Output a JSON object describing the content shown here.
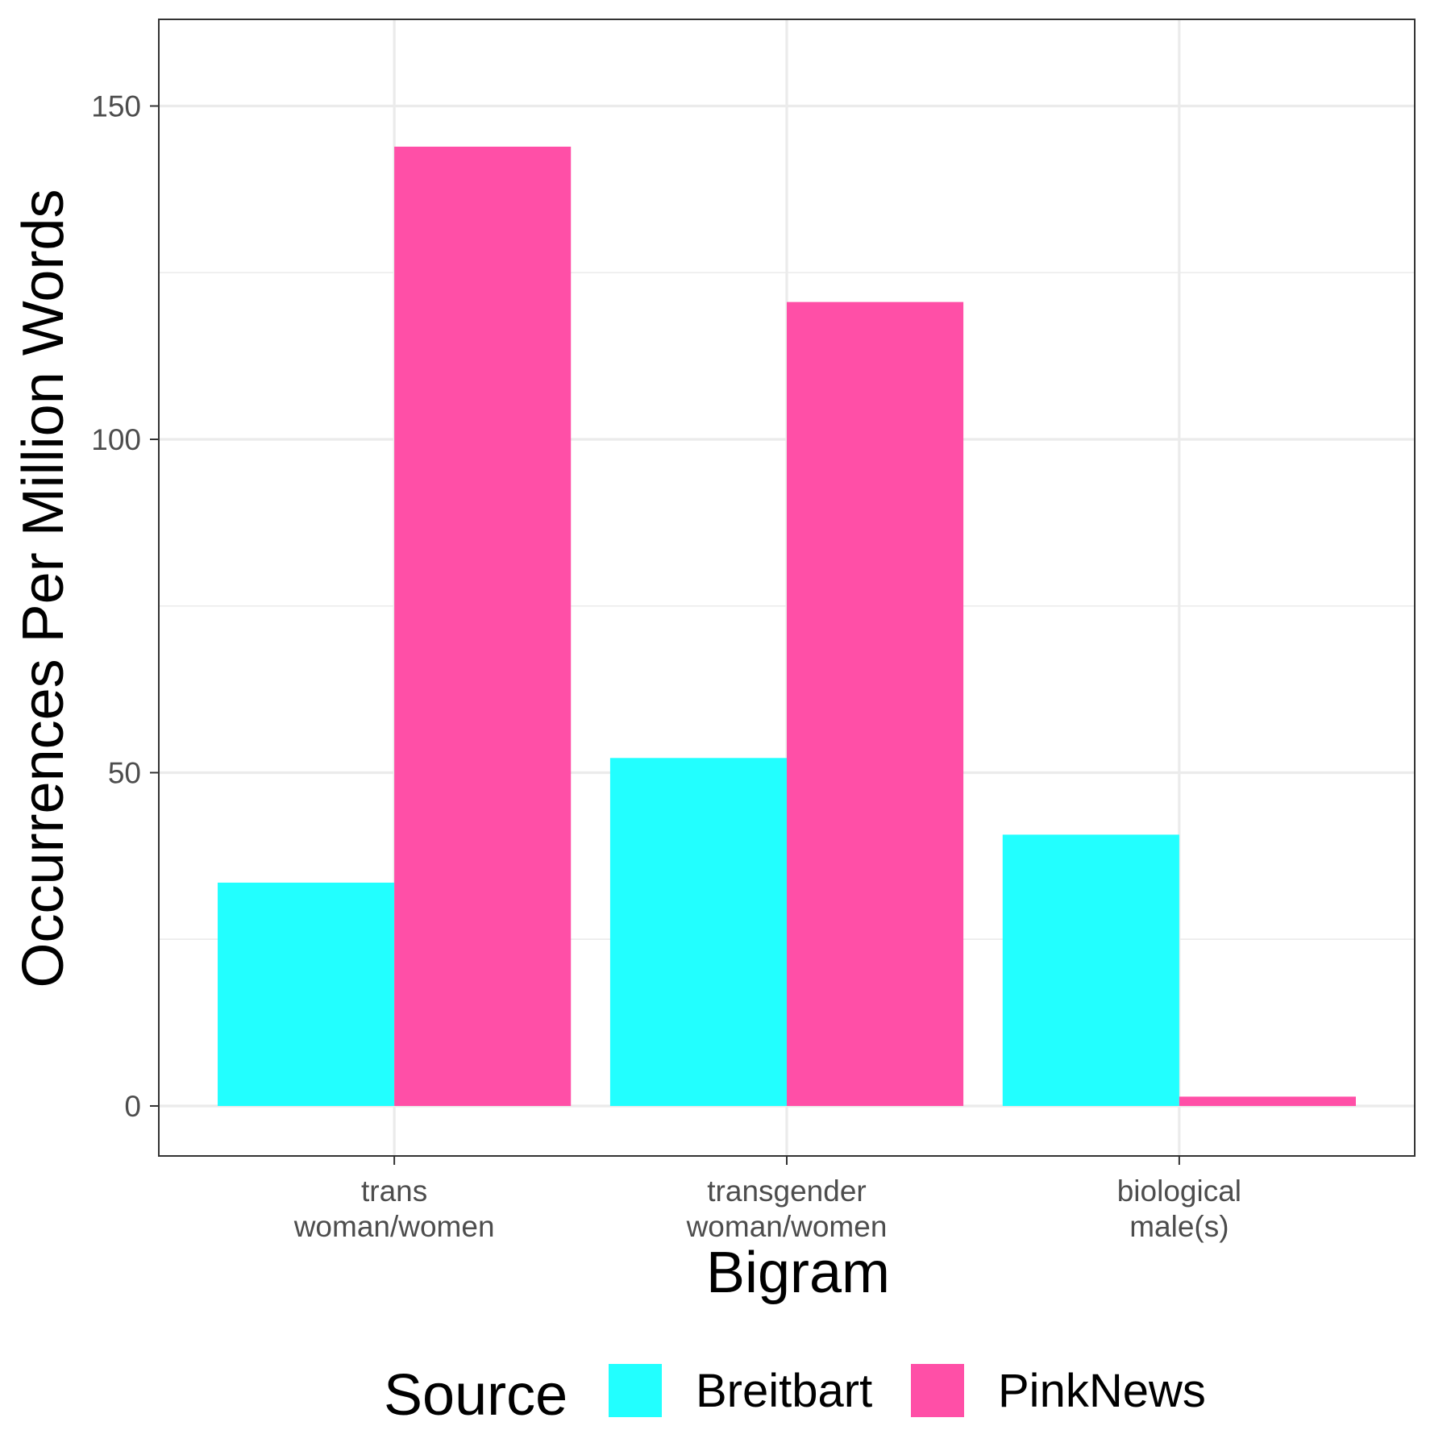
{
  "chart_data": {
    "type": "bar",
    "xlabel": "Bigram",
    "ylabel": "Occurrences Per Million Words",
    "categories": [
      [
        "trans",
        "woman/women"
      ],
      [
        "transgender",
        "woman/women"
      ],
      [
        "biological",
        "male(s)"
      ]
    ],
    "series": [
      {
        "name": "Breitbart",
        "color": "#22ffff",
        "values": [
          33.5,
          52.2,
          40.7
        ]
      },
      {
        "name": "PinkNews",
        "color": "#ff4fa7",
        "values": [
          143.9,
          120.6,
          1.4
        ]
      }
    ],
    "ylim": [
      -7.5,
      163
    ],
    "yticks": [
      0,
      50,
      100,
      150
    ],
    "grid": true,
    "legend": {
      "title": "Source",
      "position": "bottom"
    }
  }
}
